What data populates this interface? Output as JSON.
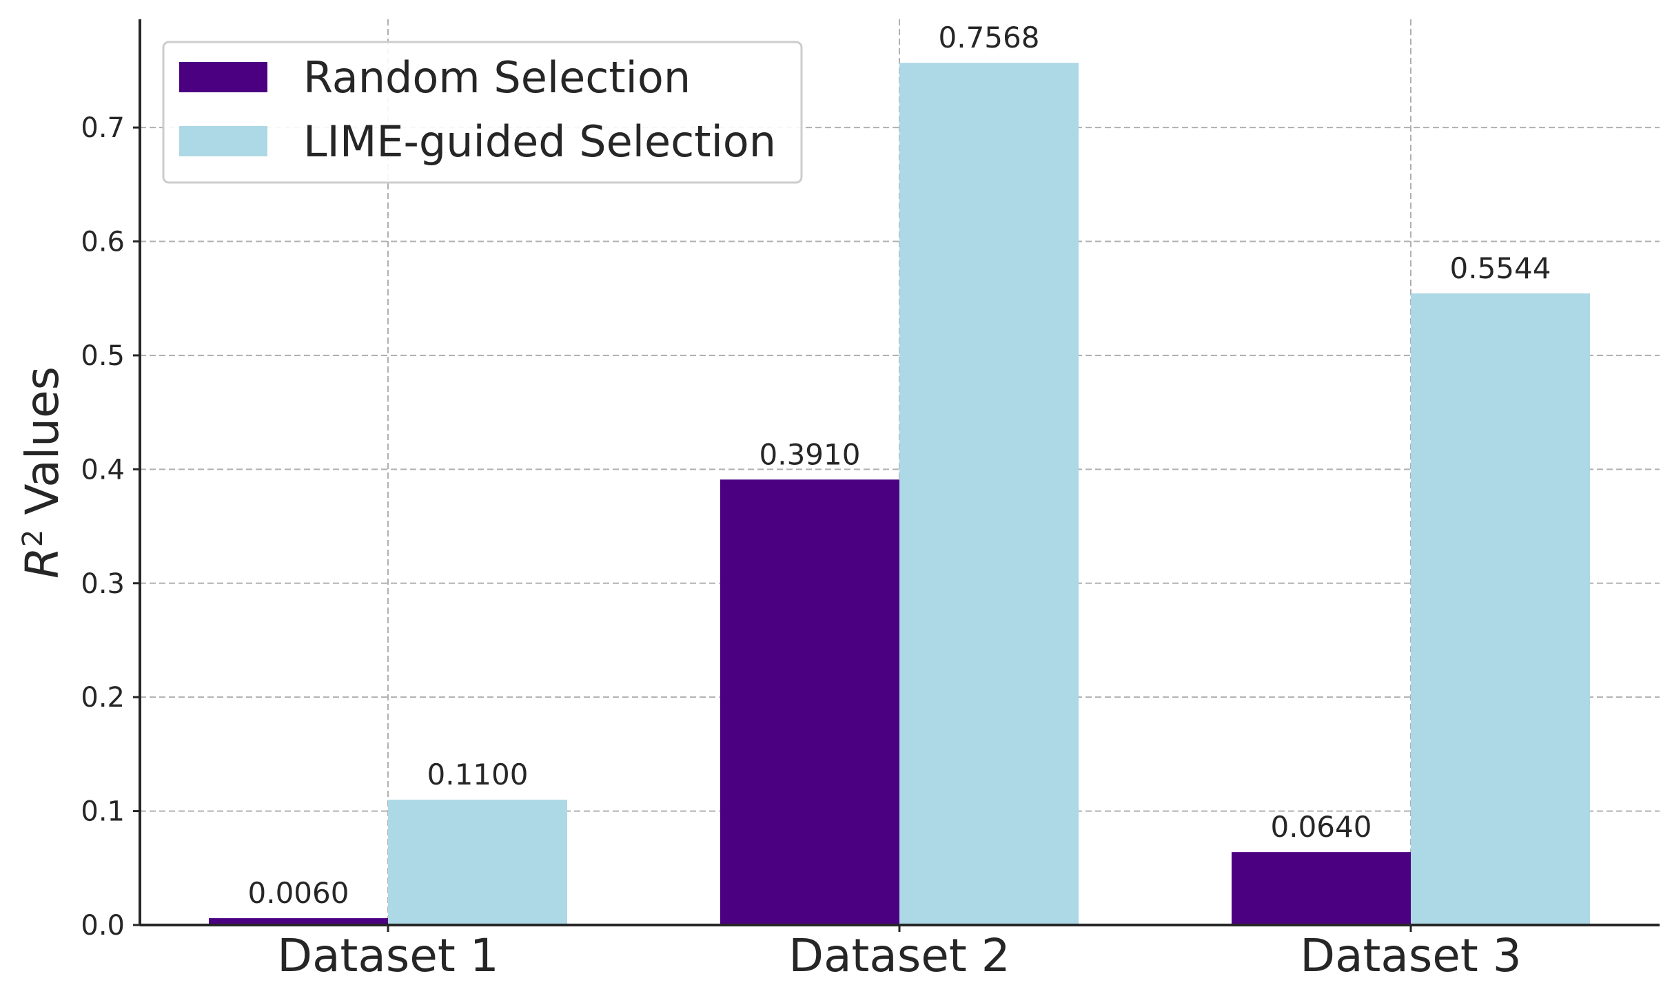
{
  "chart_data": {
    "type": "bar",
    "categories": [
      "Dataset 1",
      "Dataset 2",
      "Dataset 3"
    ],
    "series": [
      {
        "name": "Random Selection",
        "values": [
          0.006,
          0.391,
          0.064
        ],
        "labels": [
          "0.0060",
          "0.3910",
          "0.0640"
        ],
        "color": "#4b0082"
      },
      {
        "name": "LIME-guided Selection",
        "values": [
          0.11,
          0.7568,
          0.5544
        ],
        "labels": [
          "0.1100",
          "0.7568",
          "0.5544"
        ],
        "color": "#add8e6"
      }
    ],
    "title": "",
    "xlabel": "",
    "ylabel": "R² Values",
    "ylabel_parts": {
      "symbol": "R",
      "superscript": "2",
      "rest": " Values"
    },
    "ylim": [
      0,
      0.795
    ],
    "yticks": [
      0.0,
      0.1,
      0.2,
      0.3,
      0.4,
      0.5,
      0.6,
      0.7
    ],
    "ytick_labels": [
      "0.0",
      "0.1",
      "0.2",
      "0.3",
      "0.4",
      "0.5",
      "0.6",
      "0.7"
    ],
    "grid": true,
    "legend_position": "top-left"
  }
}
